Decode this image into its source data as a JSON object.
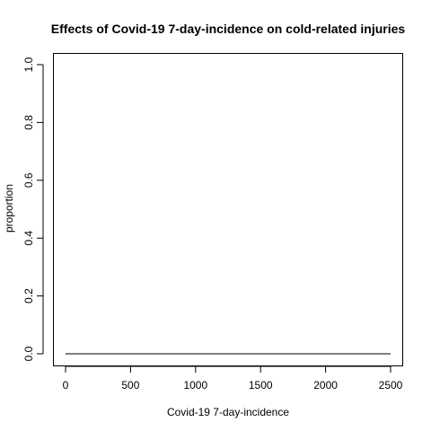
{
  "chart_data": {
    "type": "line",
    "title": "Effects of Covid-19 7-day-incidence on cold-related injuries",
    "xlabel": "Covid-19 7-day-incidence",
    "ylabel": "proportion",
    "xlim": [
      0,
      2500
    ],
    "ylim": [
      0,
      1
    ],
    "x_ticks": [
      0,
      500,
      1000,
      1500,
      2000,
      2500
    ],
    "y_ticks": [
      0.0,
      0.2,
      0.4,
      0.6,
      0.8,
      1.0
    ],
    "x_tick_labels": [
      "0",
      "500",
      "1000",
      "1500",
      "2000",
      "2500"
    ],
    "y_tick_labels": [
      "0.0",
      "0.2",
      "0.4",
      "0.6",
      "0.8",
      "1.0"
    ],
    "grid": false,
    "series": [
      {
        "x": [
          0,
          500,
          1000,
          1500,
          2000,
          2500
        ],
        "y": [
          0,
          0,
          0,
          0,
          0,
          0
        ],
        "color": "#000000"
      }
    ]
  }
}
